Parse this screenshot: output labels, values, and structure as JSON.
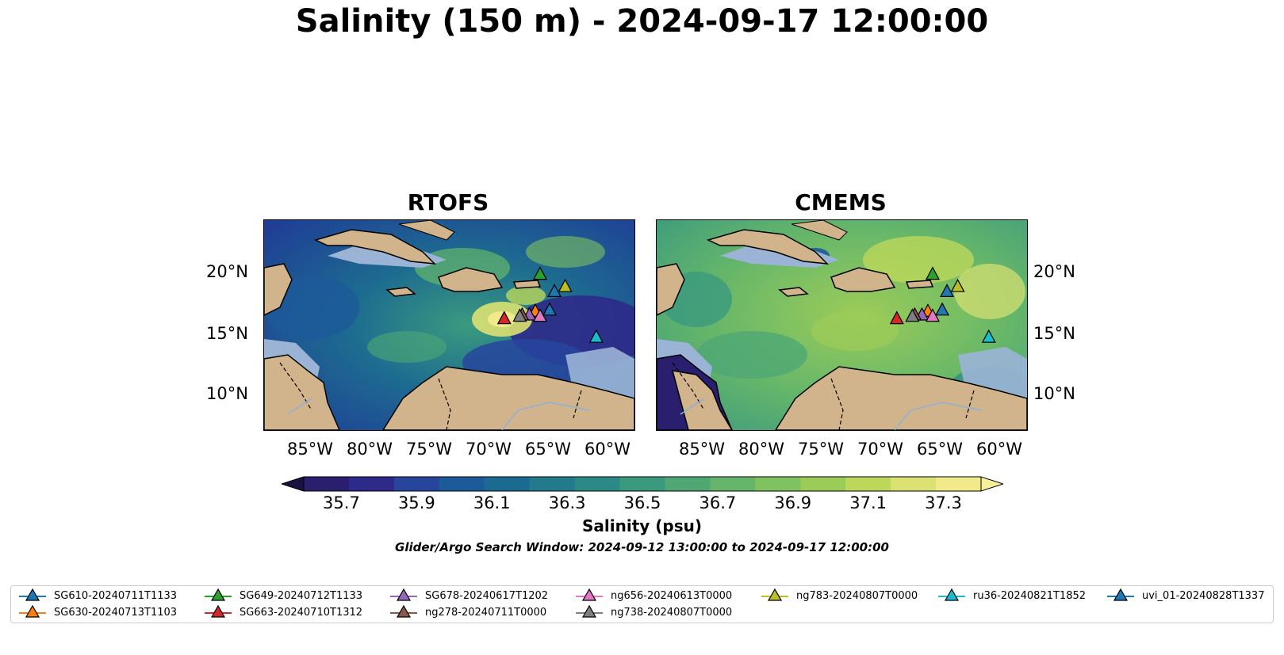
{
  "title": "Salinity (150 m) - 2024-09-17 12:00:00",
  "panels": [
    {
      "title": "RTOFS"
    },
    {
      "title": "CMEMS"
    }
  ],
  "lat_ticks": [
    "20°N",
    "15°N",
    "10°N"
  ],
  "lon_ticks": [
    "85°W",
    "80°W",
    "75°W",
    "70°W",
    "65°W",
    "60°W"
  ],
  "colorbar": {
    "label": "Salinity (psu)",
    "min": 35.6,
    "max": 37.4,
    "ticks": [
      "35.7",
      "35.9",
      "36.1",
      "36.3",
      "36.5",
      "36.7",
      "36.9",
      "37.1",
      "37.3"
    ],
    "colors": [
      "#2a1f6e",
      "#2e2a8a",
      "#27459c",
      "#1d5a9a",
      "#1a6a92",
      "#227a8c",
      "#2b8a86",
      "#3b9a7e",
      "#4fa874",
      "#65b66a",
      "#7fc25f",
      "#9ccc58",
      "#bcd75a",
      "#dbe172",
      "#f1ea8a"
    ]
  },
  "search_window": "Glider/Argo Search Window: 2024-09-12 13:00:00 to 2024-09-17 12:00:00",
  "map_colors": {
    "land": "#d2b48c",
    "shelf": "#9bb4d6"
  },
  "gliders": [
    {
      "name": "SG610-20240711T1133",
      "color": "#1f77b4",
      "lon": -64.7,
      "lat": 18.2
    },
    {
      "name": "SG630-20240713T1103",
      "color": "#ff7f0e",
      "lon": -66.3,
      "lat": 16.6
    },
    {
      "name": "SG649-20240712T1133",
      "color": "#2ca02c",
      "lon": -65.9,
      "lat": 19.6
    },
    {
      "name": "SG663-20240710T1312",
      "color": "#d62728",
      "lon": -68.9,
      "lat": 16.0
    },
    {
      "name": "SG678-20240617T1202",
      "color": "#9467bd",
      "lon": -66.8,
      "lat": 16.3
    },
    {
      "name": "ng278-20240711T0000",
      "color": "#8c564b",
      "lon": -67.4,
      "lat": 16.3
    },
    {
      "name": "ng656-20240613T0000",
      "color": "#e377c2",
      "lon": -65.9,
      "lat": 16.2
    },
    {
      "name": "ng738-20240807T0000",
      "color": "#7f7f7f",
      "lon": -67.6,
      "lat": 16.2
    },
    {
      "name": "ng783-20240807T0000",
      "color": "#bcbd22",
      "lon": -63.8,
      "lat": 18.6
    },
    {
      "name": "ru36-20240821T1852",
      "color": "#17becf",
      "lon": -61.2,
      "lat": 14.5
    },
    {
      "name": "uvi_01-20240828T1337",
      "color": "#1f77b4",
      "lon": -65.1,
      "lat": 16.7
    }
  ]
}
